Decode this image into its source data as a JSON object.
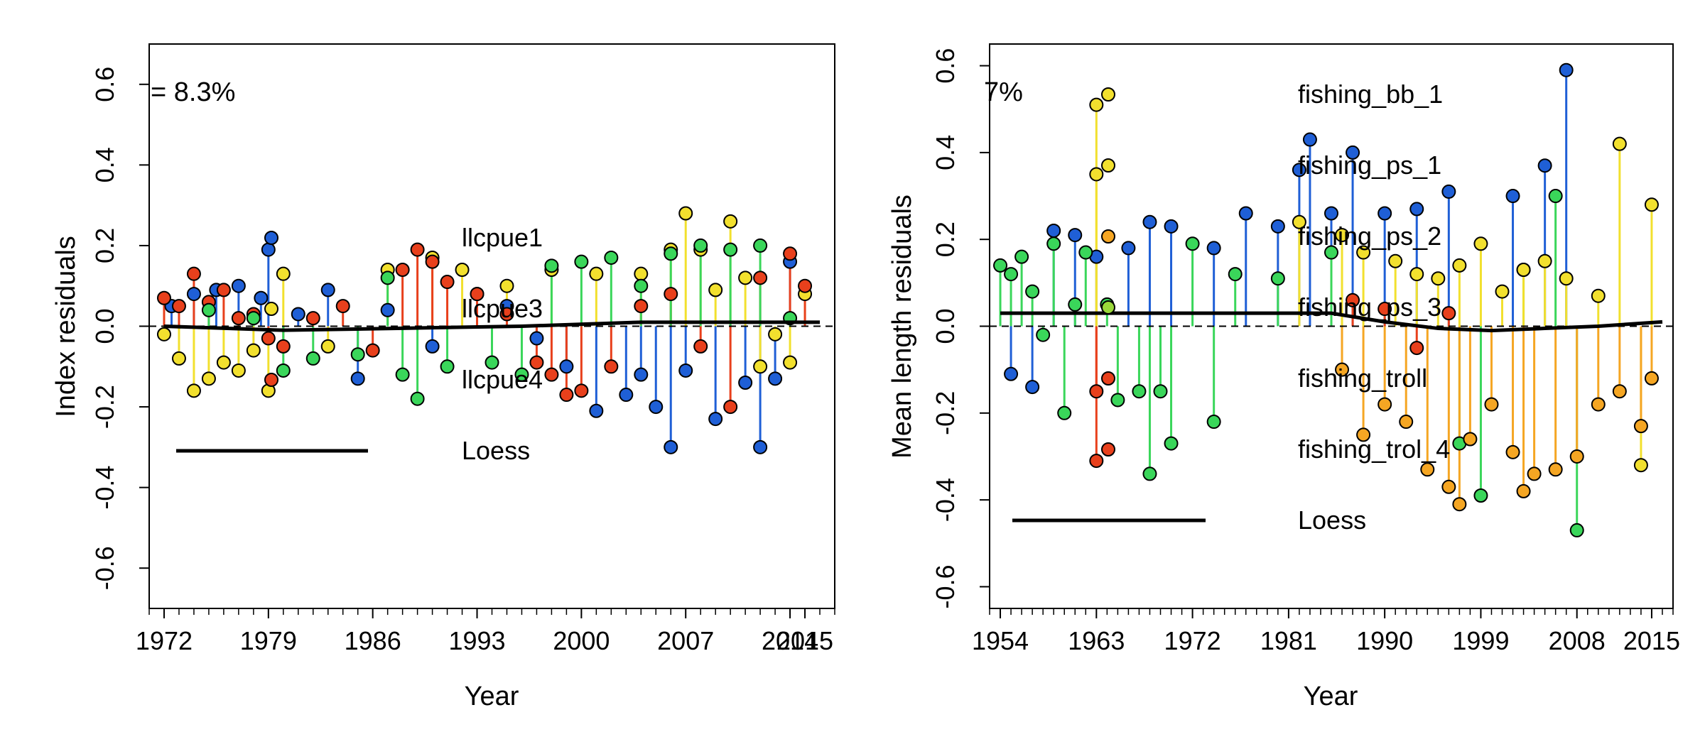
{
  "panels": [
    {
      "id": "index",
      "ylabel": "Index residuals",
      "xlabel": "Year",
      "stat_label": "= 8.3%",
      "x_ticks": [
        "1972",
        "1979",
        "1986",
        "1993",
        "2000",
        "2007",
        "2014",
        "2015"
      ],
      "y_ticks": [
        "-0.6",
        "-0.4",
        "-0.2",
        "0.0",
        "0.2",
        "0.4",
        "0.6"
      ],
      "legend": [
        {
          "label": "llcpue1",
          "color": "#1f5fd6",
          "kind": "point"
        },
        {
          "label": "llcpue3",
          "color": "#f2e02e",
          "kind": "point"
        },
        {
          "label": "llcpue4",
          "color": "#e8401c",
          "kind": "point"
        },
        {
          "label": "Loess",
          "color": "#000000",
          "kind": "line"
        }
      ]
    },
    {
      "id": "length",
      "ylabel": "Mean length residuals",
      "xlabel": "Year",
      "stat_label": "7%",
      "partial_top_label": "",
      "x_ticks": [
        "1954",
        "1963",
        "1972",
        "1981",
        "1990",
        "1999",
        "2008",
        "2015"
      ],
      "y_ticks": [
        "-0.6",
        "-0.4",
        "-0.2",
        "0.0",
        "0.2",
        "0.4",
        "0.6"
      ],
      "legend": [
        {
          "label": "fishing_bb_1",
          "color": "#f2e02e",
          "kind": "point"
        },
        {
          "label": "fishing_ps_1",
          "color": "#f2e02e",
          "kind": "point"
        },
        {
          "label": "fishing_ps_2",
          "color": "#f5a623",
          "kind": "point"
        },
        {
          "label": "fishing_ps_3",
          "color": "#9ad83a",
          "kind": "point"
        },
        {
          "label": "fishing_troll",
          "color": "#e8401c",
          "kind": "point"
        },
        {
          "label": "fishing_trol_4",
          "color": "#e8401c",
          "kind": "point"
        },
        {
          "label": "Loess",
          "color": "#000000",
          "kind": "line"
        }
      ]
    }
  ],
  "chart_data": [
    {
      "type": "scatter",
      "title": "",
      "xlabel": "Year",
      "ylabel": "Index residuals",
      "xlim": [
        1971,
        2017
      ],
      "ylim": [
        -0.7,
        0.7
      ],
      "x_tick_values": [
        1972,
        1979,
        1986,
        1993,
        2000,
        2007,
        2014,
        2015
      ],
      "y_tick_values": [
        -0.6,
        -0.4,
        -0.2,
        0.0,
        0.2,
        0.4,
        0.6
      ],
      "grid": false,
      "reference_line": 0.0,
      "series": [
        {
          "name": "llcpue1",
          "color": "#1f5fd6",
          "x": [
            1972.5,
            1974,
            1975.5,
            1977,
            1978.5,
            1979,
            1981,
            1983,
            1985,
            1987,
            1990,
            1993,
            1995,
            1997,
            1999,
            2001,
            2003,
            2004,
            2005,
            2006,
            2007,
            2009,
            2011,
            2012,
            2013,
            2014
          ],
          "y": [
            0.05,
            0.08,
            0.09,
            0.1,
            0.07,
            0.19,
            0.03,
            0.09,
            -0.13,
            0.04,
            -0.05,
            0.08,
            0.05,
            -0.03,
            -0.1,
            -0.21,
            -0.17,
            -0.12,
            -0.2,
            -0.3,
            -0.11,
            -0.23,
            -0.14,
            -0.3,
            -0.13,
            0.16
          ]
        },
        {
          "name": "llcpue3",
          "color": "#f2e02e",
          "x": [
            1972,
            1973,
            1974,
            1975,
            1976,
            1977,
            1978,
            1979,
            1980,
            1983,
            1987,
            1990,
            1992,
            1995,
            1998,
            2001,
            2004,
            2006,
            2007,
            2008,
            2009,
            2010,
            2011,
            2012,
            2013,
            2014,
            2015
          ],
          "y": [
            -0.02,
            -0.08,
            -0.16,
            -0.13,
            -0.09,
            -0.11,
            -0.06,
            -0.16,
            0.13,
            -0.05,
            0.14,
            0.17,
            0.14,
            0.1,
            0.14,
            0.13,
            0.13,
            0.19,
            0.28,
            0.19,
            0.09,
            0.26,
            0.12,
            -0.1,
            -0.02,
            -0.09,
            0.08
          ]
        },
        {
          "name": "llcpue4",
          "color": "#e8401c",
          "x": [
            1972,
            1973,
            1974,
            1975,
            1976,
            1977,
            1978,
            1979,
            1980,
            1982,
            1984,
            1986,
            1988,
            1989,
            1990,
            1991,
            1993,
            1995,
            1997,
            1998,
            1999,
            2000,
            2002,
            2004,
            2006,
            2008,
            2010,
            2012,
            2014,
            2015
          ],
          "y": [
            0.07,
            0.05,
            0.13,
            0.06,
            0.09,
            0.02,
            0.03,
            -0.03,
            -0.05,
            0.02,
            0.05,
            -0.06,
            0.14,
            0.19,
            0.16,
            0.11,
            0.08,
            0.03,
            -0.09,
            -0.12,
            -0.17,
            -0.16,
            -0.1,
            0.05,
            0.08,
            -0.05,
            -0.2,
            0.12,
            0.18,
            0.1
          ]
        },
        {
          "name": "",
          "color": "#3ad65a",
          "x": [
            1975,
            1978,
            1980,
            1982,
            1985,
            1987,
            1988,
            1989,
            1991,
            1994,
            1996,
            1998,
            2000,
            2002,
            2004,
            2006,
            2008,
            2010,
            2012,
            2014
          ],
          "y": [
            0.04,
            0.02,
            -0.11,
            -0.08,
            -0.07,
            0.12,
            -0.12,
            -0.18,
            -0.1,
            -0.09,
            -0.12,
            0.15,
            0.16,
            0.17,
            0.1,
            0.18,
            0.2,
            0.19,
            0.2,
            0.02
          ]
        }
      ],
      "loess": {
        "x": [
          1972,
          1980,
          1988,
          1996,
          2004,
          2008,
          2012,
          2016
        ],
        "y": [
          0.0,
          -0.01,
          -0.005,
          0.0,
          0.01,
          0.01,
          0.01,
          0.01
        ]
      }
    },
    {
      "type": "scatter",
      "title": "",
      "xlabel": "Year",
      "ylabel": "Mean length residuals",
      "xlim": [
        1953,
        2017
      ],
      "ylim": [
        -0.65,
        0.65
      ],
      "x_tick_values": [
        1954,
        1963,
        1972,
        1981,
        1990,
        1999,
        2008,
        2015
      ],
      "y_tick_values": [
        -0.6,
        -0.4,
        -0.2,
        0.0,
        0.2,
        0.4,
        0.6
      ],
      "grid": false,
      "reference_line": 0.0,
      "series": [
        {
          "name": "",
          "color": "#1f5fd6",
          "x": [
            1955,
            1957,
            1959,
            1961,
            1963,
            1966,
            1968,
            1970,
            1974,
            1977,
            1980,
            1982,
            1983,
            1985,
            1987,
            1990,
            1993,
            1996,
            2002,
            2005,
            2007
          ],
          "y": [
            -0.11,
            -0.14,
            0.22,
            0.21,
            0.16,
            0.18,
            0.24,
            0.23,
            0.18,
            0.26,
            0.23,
            0.36,
            0.43,
            0.26,
            0.4,
            0.26,
            0.27,
            0.31,
            0.3,
            0.37,
            0.59
          ]
        },
        {
          "name": "",
          "color": "#3ad65a",
          "x": [
            1954,
            1955,
            1956,
            1957,
            1958,
            1959,
            1960,
            1961,
            1962,
            1964,
            1965,
            1967,
            1968,
            1969,
            1970,
            1972,
            1974,
            1976,
            1980,
            1985,
            1997,
            1999,
            2003,
            2006,
            2008
          ],
          "y": [
            0.14,
            0.12,
            0.16,
            0.08,
            -0.02,
            0.19,
            -0.2,
            0.05,
            0.17,
            0.05,
            -0.17,
            -0.15,
            -0.34,
            -0.15,
            -0.27,
            0.19,
            -0.22,
            0.12,
            0.11,
            0.17,
            -0.27,
            -0.39,
            0.13,
            0.3,
            -0.47
          ]
        },
        {
          "name": "fishing_bb_1",
          "color": "#f2e02e",
          "x": [
            1963,
            1963,
            1982,
            1986,
            1988,
            1991,
            1993,
            1995,
            1997,
            1999,
            2001,
            2003,
            2005,
            2007,
            2010,
            2012,
            2014,
            2015
          ],
          "y": [
            0.51,
            0.35,
            0.24,
            0.21,
            0.17,
            0.15,
            0.12,
            0.11,
            0.14,
            0.19,
            0.08,
            0.13,
            0.15,
            0.11,
            0.07,
            0.42,
            -0.32,
            0.28
          ]
        },
        {
          "name": "",
          "color": "#f5a623",
          "x": [
            1986,
            1988,
            1990,
            1992,
            1994,
            1996,
            1997,
            1998,
            2000,
            2002,
            2003,
            2004,
            2006,
            2008,
            2010,
            2012,
            2014,
            2015
          ],
          "y": [
            -0.1,
            -0.25,
            -0.18,
            -0.22,
            -0.33,
            -0.37,
            -0.41,
            -0.26,
            -0.18,
            -0.29,
            -0.38,
            -0.34,
            -0.33,
            -0.3,
            -0.18,
            -0.15,
            -0.23,
            -0.12
          ]
        },
        {
          "name": "",
          "color": "#e8401c",
          "x": [
            1963,
            1963,
            1987,
            1990,
            1993,
            1996
          ],
          "y": [
            -0.15,
            -0.31,
            0.06,
            0.04,
            -0.05,
            0.03
          ]
        }
      ],
      "loess": {
        "x": [
          1954,
          1970,
          1980,
          1985,
          1990,
          1995,
          2000,
          2005,
          2010,
          2016
        ],
        "y": [
          0.03,
          0.03,
          0.03,
          0.03,
          0.01,
          -0.005,
          -0.01,
          -0.005,
          0.0,
          0.01
        ]
      }
    }
  ]
}
